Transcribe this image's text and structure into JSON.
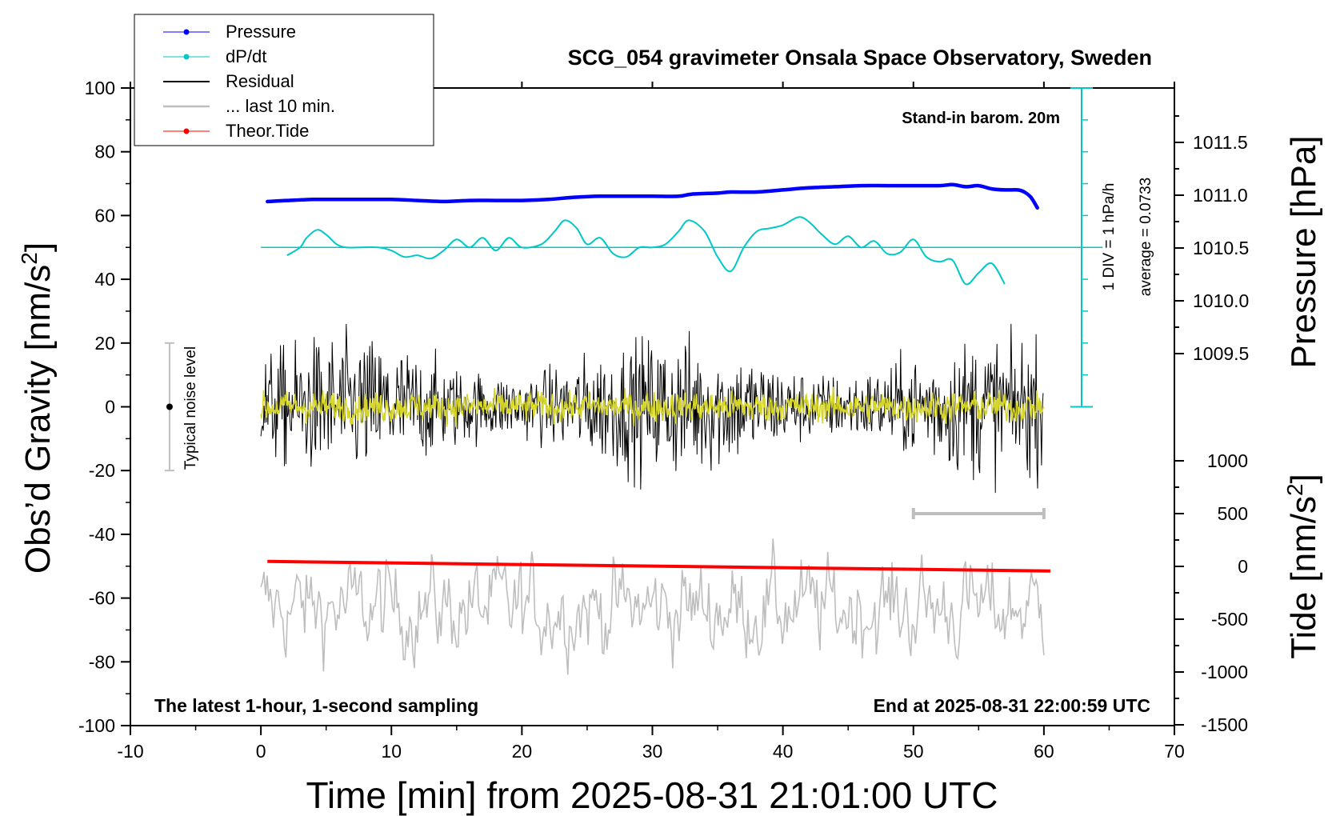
{
  "chart_data": {
    "type": "line",
    "title": "SCG_054 gravimeter Onsala Space Observatory, Sweden",
    "xlabel": "Time [min] from 2025-08-31 21:01:00 UTC",
    "ylabel_left": "Obs’d Gravity [nm/s",
    "ylabel_left_sup": "2",
    "ylabel_left_end": "]",
    "ylabel_right_top": "Pressure [hPa]",
    "ylabel_right_bottom": "Tide [nm/s",
    "ylabel_right_bottom_sup": "2",
    "ylabel_right_bottom_end": "]",
    "xlim": [
      -10,
      70
    ],
    "ylim": [
      -100,
      100
    ],
    "x_ticks": [
      "-10",
      "0",
      "10",
      "20",
      "30",
      "40",
      "50",
      "60",
      "70"
    ],
    "y_ticks": [
      "100",
      "80",
      "60",
      "40",
      "20",
      "0",
      "-20",
      "-40",
      "-60",
      "-80",
      "-100"
    ],
    "pressure_ticks": [
      "1011.5",
      "1011.0",
      "1010.5",
      "1010.0",
      "1009.5"
    ],
    "tide_ticks": [
      "1000",
      "500",
      "0",
      "-500",
      "-1000",
      "-1500"
    ],
    "legend": {
      "placement": "top-left",
      "entries": [
        "Pressure",
        "dP/dt",
        "Residual",
        "... last 10 min.",
        "Theor.Tide"
      ],
      "colors": [
        "#0000ff",
        "#00c8c8",
        "#000000",
        "#bebebe",
        "#ff0000"
      ]
    },
    "annotations": {
      "barometer": "Stand-in barom. 20m",
      "div_label": "1 DIV = 1 hPa/h",
      "average": "average = 0.0733",
      "noise": "Typical noise level",
      "bottom_left": "The latest 1-hour, 1-second sampling",
      "bottom_right": "End at 2025-08-31 22:00:59 UTC"
    },
    "noise_bar": {
      "x": -7,
      "y_range": [
        -20,
        20
      ]
    },
    "last10_bar": {
      "x_range": [
        50,
        60
      ]
    },
    "series": [
      {
        "name": "Pressure",
        "unit": "hPa",
        "color": "#0000ff",
        "x": [
          0.5,
          2,
          4,
          6,
          8,
          10,
          12,
          14,
          16,
          18,
          20,
          22,
          24,
          26,
          28,
          30,
          32,
          33,
          35,
          36,
          38,
          40,
          42,
          44,
          46,
          48,
          50,
          52,
          53,
          54,
          55,
          56,
          57,
          58,
          58.5,
          59,
          59.5
        ],
        "y": [
          1010.94,
          1010.95,
          1010.96,
          1010.96,
          1010.96,
          1010.96,
          1010.95,
          1010.94,
          1010.95,
          1010.95,
          1010.95,
          1010.96,
          1010.98,
          1010.99,
          1010.99,
          1010.99,
          1010.99,
          1011.01,
          1011.02,
          1011.03,
          1011.03,
          1011.05,
          1011.07,
          1011.08,
          1011.09,
          1011.09,
          1011.09,
          1011.09,
          1011.1,
          1011.08,
          1011.09,
          1011.06,
          1011.05,
          1011.05,
          1011.03,
          1010.98,
          1010.88
        ]
      },
      {
        "name": "dP/dt",
        "unit": "hPa/h",
        "color": "#00c8c8",
        "baseline_y": 50,
        "x": [
          2,
          3,
          3.5,
          4.3,
          5,
          5.8,
          6.5,
          7.5,
          9,
          10,
          11,
          12,
          13,
          14,
          15,
          16,
          17,
          18,
          19,
          20,
          21.5,
          22.5,
          23.3,
          24.2,
          25,
          26,
          27,
          28,
          29,
          30,
          31,
          32,
          32.8,
          34,
          35,
          36,
          37,
          38,
          39,
          40,
          41.2,
          42,
          43,
          44,
          45,
          46,
          47,
          48,
          49,
          50,
          51,
          52,
          53,
          54,
          55,
          56,
          57
        ],
        "y": [
          47.5,
          50,
          53,
          55.5,
          54,
          51,
          50,
          50,
          50,
          49,
          47,
          47.5,
          46.5,
          49,
          52.5,
          50,
          53,
          49,
          53,
          50,
          51,
          55,
          58.5,
          56,
          51,
          53,
          48,
          47,
          50,
          50,
          51,
          55,
          58.5,
          55,
          47,
          42.5,
          50,
          55,
          56,
          57,
          59.5,
          58,
          54,
          51,
          53.5,
          50,
          52,
          48,
          48.5,
          52.5,
          47,
          45.5,
          46,
          38.5,
          42,
          45,
          38.5
        ]
      },
      {
        "name": "Theor.Tide",
        "unit": "nm/s2",
        "color": "#ff0000",
        "x": [
          0.5,
          60.5
        ],
        "y": [
          -48.5,
          -51.5
        ]
      }
    ]
  }
}
